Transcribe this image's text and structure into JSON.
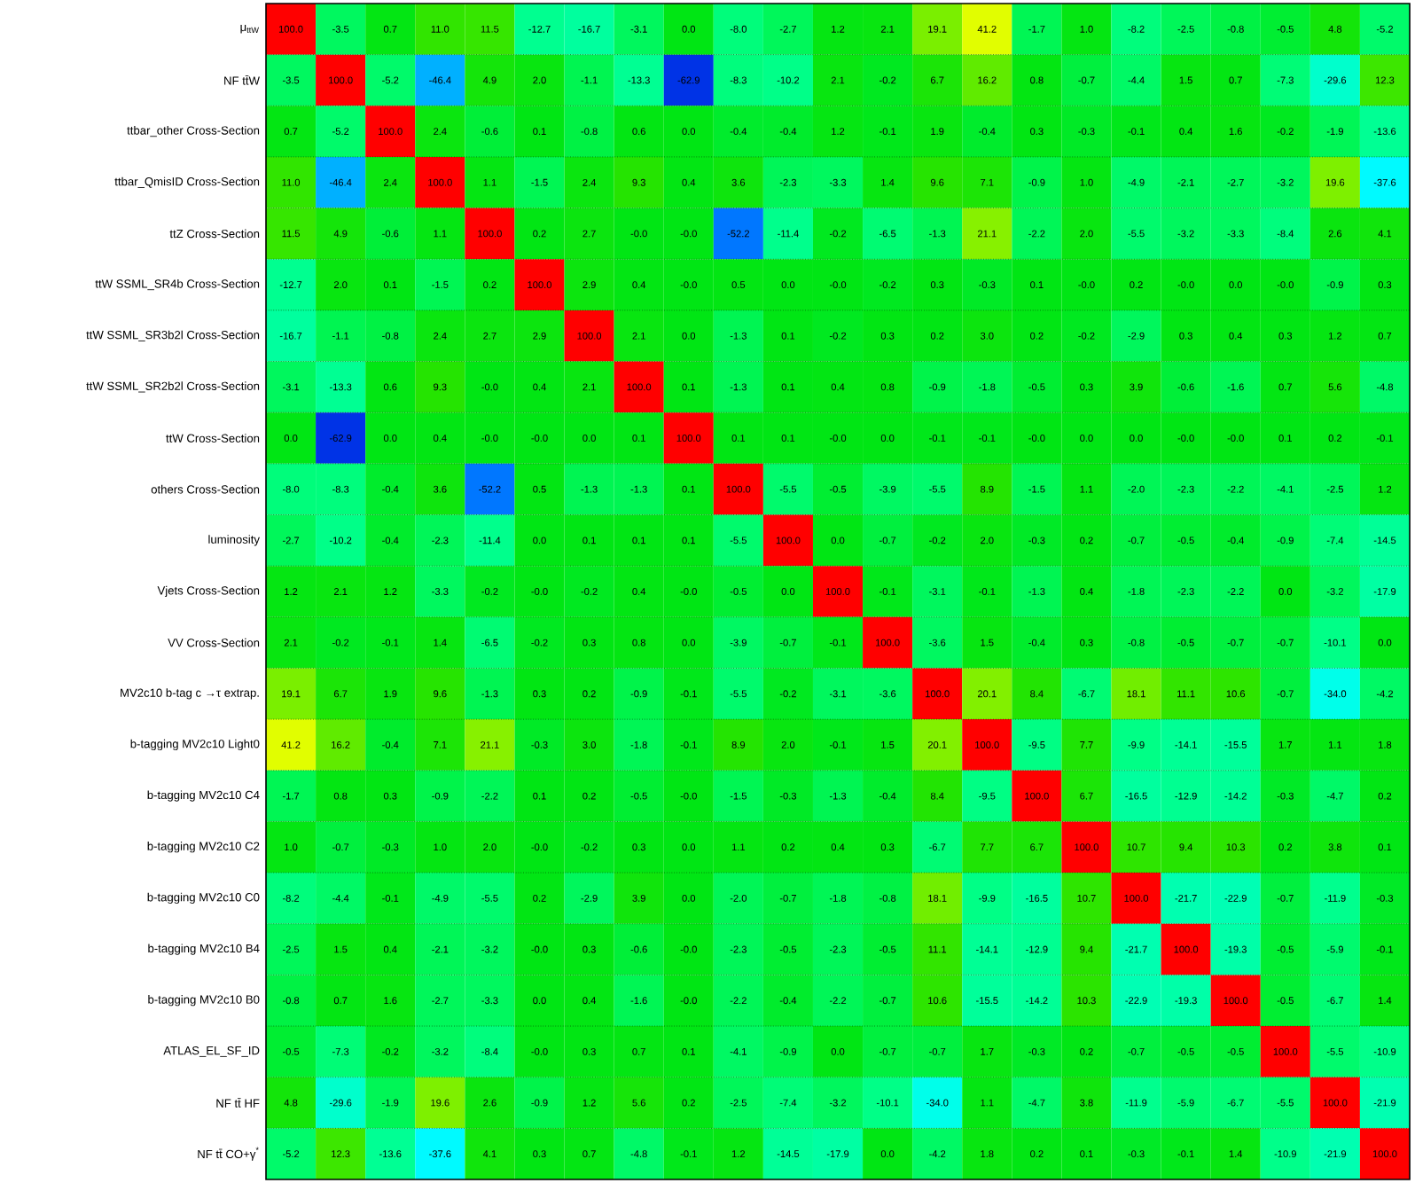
{
  "chart_data": {
    "type": "heatmap",
    "categories": [
      null,
      null,
      null,
      null,
      null,
      null,
      null,
      null,
      null,
      null,
      null,
      null,
      null,
      null,
      null,
      null,
      null,
      null,
      null,
      null,
      null,
      null,
      null
    ],
    "y_categories": [
      "μ$_{ttW}$",
      "NF tt̄W",
      "ttbar_other Cross-Section",
      "ttbar_QmisID Cross-Section",
      "ttZ Cross-Section",
      "ttW SSML_SR4b Cross-Section",
      "ttW SSML_SR3b2l Cross-Section",
      "ttW SSML_SR2b2l Cross-Section",
      "ttW Cross-Section",
      "others Cross-Section",
      "luminosity",
      "Vjets Cross-Section",
      "VV Cross-Section",
      "MV2c10 b-tag c →τ extrap.",
      "b-tagging MV2c10 Light0",
      "b-tagging MV2c10 C4",
      "b-tagging MV2c10 C2",
      "b-tagging MV2c10 C0",
      "b-tagging MV2c10 B4",
      "b-tagging MV2c10 B0",
      "ATLAS_EL_SF_ID",
      "NF tt̄ HF",
      "NF tt̄ CO+γ$^{*}$"
    ],
    "cells": [
      [
        100.0,
        -3.5,
        0.7,
        11.0,
        11.5,
        -12.7,
        -16.7,
        -3.1,
        0.0,
        -8.0,
        -2.7,
        1.2,
        2.1,
        19.1,
        41.2,
        -1.7,
        1.0,
        -8.2,
        -2.5,
        -0.8,
        -0.5,
        4.8,
        -5.2
      ],
      [
        -3.5,
        100.0,
        -5.2,
        -46.4,
        4.9,
        2.0,
        -1.1,
        -13.3,
        -62.9,
        -8.3,
        -10.2,
        2.1,
        -0.2,
        6.7,
        16.2,
        0.8,
        -0.7,
        -4.4,
        1.5,
        0.7,
        -7.3,
        -29.6,
        12.3
      ],
      [
        0.7,
        -5.2,
        100.0,
        2.4,
        -0.6,
        0.1,
        -0.8,
        0.6,
        0.0,
        -0.4,
        -0.4,
        1.2,
        -0.1,
        1.9,
        -0.4,
        0.3,
        -0.3,
        -0.1,
        0.4,
        1.6,
        -0.2,
        -1.9,
        -13.6
      ],
      [
        11.0,
        -46.4,
        2.4,
        100.0,
        1.1,
        -1.5,
        2.4,
        9.3,
        0.4,
        3.6,
        -2.3,
        -3.3,
        1.4,
        9.6,
        7.1,
        -0.9,
        1.0,
        -4.9,
        -2.1,
        -2.7,
        -3.2,
        19.6,
        -37.6
      ],
      [
        11.5,
        4.9,
        -0.6,
        1.1,
        100.0,
        0.2,
        2.7,
        -0.0,
        -0.0,
        -52.2,
        -11.4,
        -0.2,
        -6.5,
        -1.3,
        21.1,
        -2.2,
        2.0,
        -5.5,
        -3.2,
        -3.3,
        -8.4,
        2.6,
        4.1
      ],
      [
        -12.7,
        2.0,
        0.1,
        -1.5,
        0.2,
        100.0,
        2.9,
        0.4,
        -0.0,
        0.5,
        0.0,
        -0.0,
        -0.2,
        0.3,
        -0.3,
        0.1,
        -0.0,
        0.2,
        -0.0,
        0.0,
        -0.0,
        -0.9,
        0.3
      ],
      [
        -16.7,
        -1.1,
        -0.8,
        2.4,
        2.7,
        2.9,
        100.0,
        2.1,
        0.0,
        -1.3,
        0.1,
        -0.2,
        0.3,
        0.2,
        3.0,
        0.2,
        -0.2,
        -2.9,
        0.3,
        0.4,
        0.3,
        1.2,
        0.7
      ],
      [
        -3.1,
        -13.3,
        0.6,
        9.3,
        -0.0,
        0.4,
        2.1,
        100.0,
        0.1,
        -1.3,
        0.1,
        0.4,
        0.8,
        -0.9,
        -1.8,
        -0.5,
        0.3,
        3.9,
        -0.6,
        -1.6,
        0.7,
        5.6,
        -4.8
      ],
      [
        0.0,
        -62.9,
        0.0,
        0.4,
        -0.0,
        -0.0,
        0.0,
        0.1,
        100.0,
        0.1,
        0.1,
        -0.0,
        0.0,
        -0.1,
        -0.1,
        -0.0,
        0.0,
        0.0,
        -0.0,
        -0.0,
        0.1,
        0.2,
        -0.1
      ],
      [
        -8.0,
        -8.3,
        -0.4,
        3.6,
        -52.2,
        0.5,
        -1.3,
        -1.3,
        0.1,
        100.0,
        -5.5,
        -0.5,
        -3.9,
        -5.5,
        8.9,
        -1.5,
        1.1,
        -2.0,
        -2.3,
        -2.2,
        -4.1,
        -2.5,
        1.2
      ],
      [
        -2.7,
        -10.2,
        -0.4,
        -2.3,
        -11.4,
        0.0,
        0.1,
        0.1,
        0.1,
        -5.5,
        100.0,
        0.0,
        -0.7,
        -0.2,
        2.0,
        -0.3,
        0.2,
        -0.7,
        -0.5,
        -0.4,
        -0.9,
        -7.4,
        -14.5
      ],
      [
        1.2,
        2.1,
        1.2,
        -3.3,
        -0.2,
        -0.0,
        -0.2,
        0.4,
        -0.0,
        -0.5,
        0.0,
        100.0,
        -0.1,
        -3.1,
        -0.1,
        -1.3,
        0.4,
        -1.8,
        -2.3,
        -2.2,
        0.0,
        -3.2,
        -17.9
      ],
      [
        2.1,
        -0.2,
        -0.1,
        1.4,
        -6.5,
        -0.2,
        0.3,
        0.8,
        0.0,
        -3.9,
        -0.7,
        -0.1,
        100.0,
        -3.6,
        1.5,
        -0.4,
        0.3,
        -0.8,
        -0.5,
        -0.7,
        -0.7,
        -10.1,
        0.0
      ],
      [
        19.1,
        6.7,
        1.9,
        9.6,
        -1.3,
        0.3,
        0.2,
        -0.9,
        -0.1,
        -5.5,
        -0.2,
        -3.1,
        -3.6,
        100.0,
        20.1,
        8.4,
        -6.7,
        18.1,
        11.1,
        10.6,
        -0.7,
        -34.0,
        -4.2
      ],
      [
        41.2,
        16.2,
        -0.4,
        7.1,
        21.1,
        -0.3,
        3.0,
        -1.8,
        -0.1,
        8.9,
        2.0,
        -0.1,
        1.5,
        20.1,
        100.0,
        -9.5,
        7.7,
        -9.9,
        -14.1,
        -15.5,
        1.7,
        1.1,
        1.8
      ],
      [
        -1.7,
        0.8,
        0.3,
        -0.9,
        -2.2,
        0.1,
        0.2,
        -0.5,
        -0.0,
        -1.5,
        -0.3,
        -1.3,
        -0.4,
        8.4,
        -9.5,
        100.0,
        6.7,
        -16.5,
        -12.9,
        -14.2,
        -0.3,
        -4.7,
        0.2
      ],
      [
        1.0,
        -0.7,
        -0.3,
        1.0,
        2.0,
        -0.0,
        -0.2,
        0.3,
        0.0,
        1.1,
        0.2,
        0.4,
        0.3,
        -6.7,
        7.7,
        6.7,
        100.0,
        10.7,
        9.4,
        10.3,
        0.2,
        3.8,
        0.1
      ],
      [
        -8.2,
        -4.4,
        -0.1,
        -4.9,
        -5.5,
        0.2,
        -2.9,
        3.9,
        0.0,
        -2.0,
        -0.7,
        -1.8,
        -0.8,
        18.1,
        -9.9,
        -16.5,
        10.7,
        100.0,
        -21.7,
        -22.9,
        -0.7,
        -11.9,
        -0.3
      ],
      [
        -2.5,
        1.5,
        0.4,
        -2.1,
        -3.2,
        -0.0,
        0.3,
        -0.6,
        -0.0,
        -2.3,
        -0.5,
        -2.3,
        -0.5,
        11.1,
        -14.1,
        -12.9,
        9.4,
        -21.7,
        100.0,
        -19.3,
        -0.5,
        -5.9,
        -0.1
      ],
      [
        -0.8,
        0.7,
        1.6,
        -2.7,
        -3.3,
        0.0,
        0.4,
        -1.6,
        -0.0,
        -2.2,
        -0.4,
        -2.2,
        -0.7,
        10.6,
        -15.5,
        -14.2,
        10.3,
        -22.9,
        -19.3,
        100.0,
        -0.5,
        -6.7,
        1.4
      ],
      [
        -0.5,
        -7.3,
        -0.2,
        -3.2,
        -8.4,
        -0.0,
        0.3,
        0.7,
        0.1,
        -4.1,
        -0.9,
        0.0,
        -0.7,
        -0.7,
        1.7,
        -0.3,
        0.2,
        -0.7,
        -0.5,
        -0.5,
        100.0,
        -5.5,
        -10.9
      ],
      [
        4.8,
        -29.6,
        -1.9,
        19.6,
        2.6,
        -0.9,
        1.2,
        5.6,
        0.2,
        -2.5,
        -7.4,
        -3.2,
        -10.1,
        -34.0,
        1.1,
        -4.7,
        3.8,
        -11.9,
        -5.9,
        -6.7,
        -5.5,
        100.0,
        -21.9
      ],
      [
        -5.2,
        12.3,
        -13.6,
        -37.6,
        4.1,
        0.3,
        0.7,
        -4.8,
        -0.1,
        1.2,
        -14.5,
        -17.9,
        0.0,
        -4.2,
        1.8,
        0.2,
        0.1,
        -0.3,
        -0.1,
        1.4,
        -10.9,
        -21.9,
        100.0
      ]
    ],
    "cell_labels": [
      [
        "100.0",
        "-3.5",
        "0.7",
        "11.0",
        "11.5",
        "-12.7",
        "-16.7",
        "-3.1",
        "0.0",
        "-8.0",
        "-2.7",
        "1.2",
        "2.1",
        "19.1",
        "41.2",
        "-1.7",
        "1.0",
        "-8.2",
        "-2.5",
        "-0.8",
        "-0.5",
        "4.8",
        "-5.2"
      ],
      [
        "-3.5",
        "100.0",
        "-5.2",
        "-46.4",
        "4.9",
        "2.0",
        "-1.1",
        "-13.3",
        "-62.9",
        "-8.3",
        "-10.2",
        "2.1",
        "-0.2",
        "6.7",
        "16.2",
        "0.8",
        "-0.7",
        "-4.4",
        "1.5",
        "0.7",
        "-7.3",
        "-29.6",
        "12.3"
      ],
      [
        "0.7",
        "-5.2",
        "100.0",
        "2.4",
        "-0.6",
        "0.1",
        "-0.8",
        "0.6",
        "0.0",
        "-0.4",
        "-0.4",
        "1.2",
        "-0.1",
        "1.9",
        "-0.4",
        "0.3",
        "-0.3",
        "-0.1",
        "0.4",
        "1.6",
        "-0.2",
        "-1.9",
        "-13.6"
      ],
      [
        "11.0",
        "-46.4",
        "2.4",
        "100.0",
        "1.1",
        "-1.5",
        "2.4",
        "9.3",
        "0.4",
        "3.6",
        "-2.3",
        "-3.3",
        "1.4",
        "9.6",
        "7.1",
        "-0.9",
        "1.0",
        "-4.9",
        "-2.1",
        "-2.7",
        "-3.2",
        "19.6",
        "-37.6"
      ],
      [
        "11.5",
        "4.9",
        "-0.6",
        "1.1",
        "100.0",
        "0.2",
        "2.7",
        "-0.0",
        "-0.0",
        "-52.2",
        "-11.4",
        "-0.2",
        "-6.5",
        "-1.3",
        "21.1",
        "-2.2",
        "2.0",
        "-5.5",
        "-3.2",
        "-3.3",
        "-8.4",
        "2.6",
        "4.1"
      ],
      [
        "-12.7",
        "2.0",
        "0.1",
        "-1.5",
        "0.2",
        "100.0",
        "2.9",
        "0.4",
        "-0.0",
        "0.5",
        "0.0",
        "-0.0",
        "-0.2",
        "0.3",
        "-0.3",
        "0.1",
        "-0.0",
        "0.2",
        "-0.0",
        "0.0",
        "-0.0",
        "-0.9",
        "0.3"
      ],
      [
        "-16.7",
        "-1.1",
        "-0.8",
        "2.4",
        "2.7",
        "2.9",
        "100.0",
        "2.1",
        "0.0",
        "-1.3",
        "0.1",
        "-0.2",
        "0.3",
        "0.2",
        "3.0",
        "0.2",
        "-0.2",
        "-2.9",
        "0.3",
        "0.4",
        "0.3",
        "1.2",
        "0.7"
      ],
      [
        "-3.1",
        "-13.3",
        "0.6",
        "9.3",
        "-0.0",
        "0.4",
        "2.1",
        "100.0",
        "0.1",
        "-1.3",
        "0.1",
        "0.4",
        "0.8",
        "-0.9",
        "-1.8",
        "-0.5",
        "0.3",
        "3.9",
        "-0.6",
        "-1.6",
        "0.7",
        "5.6",
        "-4.8"
      ],
      [
        "0.0",
        "-62.9",
        "0.0",
        "0.4",
        "-0.0",
        "-0.0",
        "0.0",
        "0.1",
        "100.0",
        "0.1",
        "0.1",
        "-0.0",
        "0.0",
        "-0.1",
        "-0.1",
        "-0.0",
        "0.0",
        "0.0",
        "-0.0",
        "-0.0",
        "0.1",
        "0.2",
        "-0.1"
      ],
      [
        "-8.0",
        "-8.3",
        "-0.4",
        "3.6",
        "-52.2",
        "0.5",
        "-1.3",
        "-1.3",
        "0.1",
        "100.0",
        "-5.5",
        "-0.5",
        "-3.9",
        "-5.5",
        "8.9",
        "-1.5",
        "1.1",
        "-2.0",
        "-2.3",
        "-2.2",
        "-4.1",
        "-2.5",
        "1.2"
      ],
      [
        "-2.7",
        "-10.2",
        "-0.4",
        "-2.3",
        "-11.4",
        "0.0",
        "0.1",
        "0.1",
        "0.1",
        "-5.5",
        "100.0",
        "0.0",
        "-0.7",
        "-0.2",
        "2.0",
        "-0.3",
        "0.2",
        "-0.7",
        "-0.5",
        "-0.4",
        "-0.9",
        "-7.4",
        "-14.5"
      ],
      [
        "1.2",
        "2.1",
        "1.2",
        "-3.3",
        "-0.2",
        "-0.0",
        "-0.2",
        "0.4",
        "-0.0",
        "-0.5",
        "0.0",
        "100.0",
        "-0.1",
        "-3.1",
        "-0.1",
        "-1.3",
        "0.4",
        "-1.8",
        "-2.3",
        "-2.2",
        "0.0",
        "-3.2",
        "-17.9"
      ],
      [
        "2.1",
        "-0.2",
        "-0.1",
        "1.4",
        "-6.5",
        "-0.2",
        "0.3",
        "0.8",
        "0.0",
        "-3.9",
        "-0.7",
        "-0.1",
        "100.0",
        "-3.6",
        "1.5",
        "-0.4",
        "0.3",
        "-0.8",
        "-0.5",
        "-0.7",
        "-0.7",
        "-10.1",
        "0.0"
      ],
      [
        "19.1",
        "6.7",
        "1.9",
        "9.6",
        "-1.3",
        "0.3",
        "0.2",
        "-0.9",
        "-0.1",
        "-5.5",
        "-0.2",
        "-3.1",
        "-3.6",
        "100.0",
        "20.1",
        "8.4",
        "-6.7",
        "18.1",
        "11.1",
        "10.6",
        "-0.7",
        "-34.0",
        "-4.2"
      ],
      [
        "41.2",
        "16.2",
        "-0.4",
        "7.1",
        "21.1",
        "-0.3",
        "3.0",
        "-1.8",
        "-0.1",
        "8.9",
        "2.0",
        "-0.1",
        "1.5",
        "20.1",
        "100.0",
        "-9.5",
        "7.7",
        "-9.9",
        "-14.1",
        "-15.5",
        "1.7",
        "1.1",
        "1.8"
      ],
      [
        "-1.7",
        "0.8",
        "0.3",
        "-0.9",
        "-2.2",
        "0.1",
        "0.2",
        "-0.5",
        "-0.0",
        "-1.5",
        "-0.3",
        "-1.3",
        "-0.4",
        "8.4",
        "-9.5",
        "100.0",
        "6.7",
        "-16.5",
        "-12.9",
        "-14.2",
        "-0.3",
        "-4.7",
        "0.2"
      ],
      [
        "1.0",
        "-0.7",
        "-0.3",
        "1.0",
        "2.0",
        "-0.0",
        "-0.2",
        "0.3",
        "0.0",
        "1.1",
        "0.2",
        "0.4",
        "0.3",
        "-6.7",
        "7.7",
        "6.7",
        "100.0",
        "10.7",
        "9.4",
        "10.3",
        "0.2",
        "3.8",
        "0.1"
      ],
      [
        "-8.2",
        "-4.4",
        "-0.1",
        "-4.9",
        "-5.5",
        "0.2",
        "-2.9",
        "3.9",
        "0.0",
        "-2.0",
        "-0.7",
        "-1.8",
        "-0.8",
        "18.1",
        "-9.9",
        "-16.5",
        "10.7",
        "100.0",
        "-21.7",
        "-22.9",
        "-0.7",
        "-11.9",
        "-0.3"
      ],
      [
        "-2.5",
        "1.5",
        "0.4",
        "-2.1",
        "-3.2",
        "-0.0",
        "0.3",
        "-0.6",
        "-0.0",
        "-2.3",
        "-0.5",
        "-2.3",
        "-0.5",
        "11.1",
        "-14.1",
        "-12.9",
        "9.4",
        "-21.7",
        "100.0",
        "-19.3",
        "-0.5",
        "-5.9",
        "-0.1"
      ],
      [
        "-0.8",
        "0.7",
        "1.6",
        "-2.7",
        "-3.3",
        "0.0",
        "0.4",
        "-1.6",
        "-0.0",
        "-2.2",
        "-0.4",
        "-2.2",
        "-0.7",
        "10.6",
        "-15.5",
        "-14.2",
        "10.3",
        "-22.9",
        "-19.3",
        "100.0",
        "-0.5",
        "-6.7",
        "1.4"
      ],
      [
        "-0.5",
        "-7.3",
        "-0.2",
        "-3.2",
        "-8.4",
        "-0.0",
        "0.3",
        "0.7",
        "0.1",
        "-4.1",
        "-0.9",
        "0.0",
        "-0.7",
        "-0.7",
        "1.7",
        "-0.3",
        "0.2",
        "-0.7",
        "-0.5",
        "-0.5",
        "100.0",
        "-5.5",
        "-10.9"
      ],
      [
        "4.8",
        "-29.6",
        "-1.9",
        "19.6",
        "2.6",
        "-0.9",
        "1.2",
        "5.6",
        "0.2",
        "-2.5",
        "-7.4",
        "-3.2",
        "-10.1",
        "-34.0",
        "1.1",
        "-4.7",
        "3.8",
        "-11.9",
        "-5.9",
        "-6.7",
        "-5.5",
        "100.0",
        "-21.9"
      ],
      [
        "-5.2",
        "12.3",
        "-13.6",
        "-37.6",
        "4.1",
        "0.3",
        "0.7",
        "-4.8",
        "-0.1",
        "1.2",
        "-14.5",
        "-17.9",
        "0.0",
        "-4.2",
        "1.8",
        "0.2",
        "0.1",
        "-0.3",
        "-0.1",
        "1.4",
        "-10.9",
        "-21.9",
        "100.0"
      ]
    ],
    "data_labels": true,
    "grid": true
  }
}
